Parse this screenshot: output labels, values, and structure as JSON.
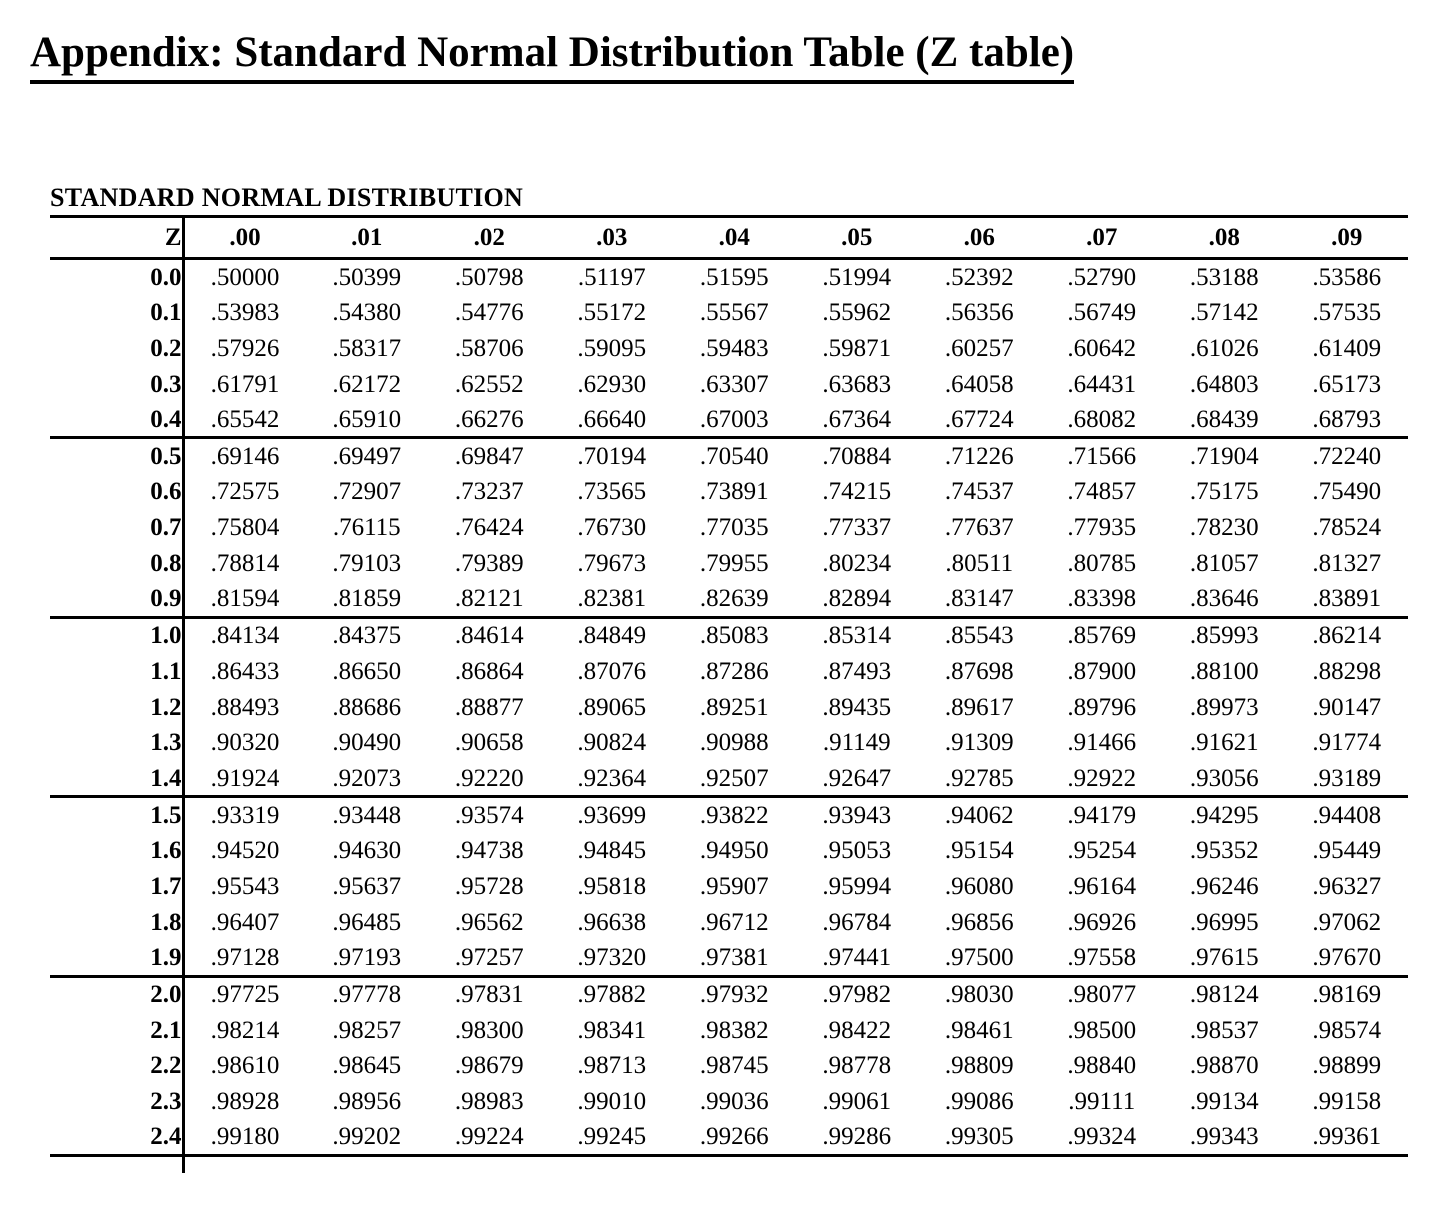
{
  "page_title": "Appendix: Standard Normal Distribution Table (Z table)",
  "colors": {
    "text": "#000000",
    "background": "#ffffff",
    "rule": "#000000"
  },
  "table": {
    "label": "STANDARD NORMAL DISTRIBUTION",
    "corner_header": "Z",
    "column_headers": [
      ".00",
      ".01",
      ".02",
      ".03",
      ".04",
      ".05",
      ".06",
      ".07",
      ".08",
      ".09"
    ],
    "group_size": 5,
    "rows": [
      {
        "z": "0.0",
        "values": [
          ".50000",
          ".50399",
          ".50798",
          ".51197",
          ".51595",
          ".51994",
          ".52392",
          ".52790",
          ".53188",
          ".53586"
        ]
      },
      {
        "z": "0.1",
        "values": [
          ".53983",
          ".54380",
          ".54776",
          ".55172",
          ".55567",
          ".55962",
          ".56356",
          ".56749",
          ".57142",
          ".57535"
        ]
      },
      {
        "z": "0.2",
        "values": [
          ".57926",
          ".58317",
          ".58706",
          ".59095",
          ".59483",
          ".59871",
          ".60257",
          ".60642",
          ".61026",
          ".61409"
        ]
      },
      {
        "z": "0.3",
        "values": [
          ".61791",
          ".62172",
          ".62552",
          ".62930",
          ".63307",
          ".63683",
          ".64058",
          ".64431",
          ".64803",
          ".65173"
        ]
      },
      {
        "z": "0.4",
        "values": [
          ".65542",
          ".65910",
          ".66276",
          ".66640",
          ".67003",
          ".67364",
          ".67724",
          ".68082",
          ".68439",
          ".68793"
        ]
      },
      {
        "z": "0.5",
        "values": [
          ".69146",
          ".69497",
          ".69847",
          ".70194",
          ".70540",
          ".70884",
          ".71226",
          ".71566",
          ".71904",
          ".72240"
        ]
      },
      {
        "z": "0.6",
        "values": [
          ".72575",
          ".72907",
          ".73237",
          ".73565",
          ".73891",
          ".74215",
          ".74537",
          ".74857",
          ".75175",
          ".75490"
        ]
      },
      {
        "z": "0.7",
        "values": [
          ".75804",
          ".76115",
          ".76424",
          ".76730",
          ".77035",
          ".77337",
          ".77637",
          ".77935",
          ".78230",
          ".78524"
        ]
      },
      {
        "z": "0.8",
        "values": [
          ".78814",
          ".79103",
          ".79389",
          ".79673",
          ".79955",
          ".80234",
          ".80511",
          ".80785",
          ".81057",
          ".81327"
        ]
      },
      {
        "z": "0.9",
        "values": [
          ".81594",
          ".81859",
          ".82121",
          ".82381",
          ".82639",
          ".82894",
          ".83147",
          ".83398",
          ".83646",
          ".83891"
        ]
      },
      {
        "z": "1.0",
        "values": [
          ".84134",
          ".84375",
          ".84614",
          ".84849",
          ".85083",
          ".85314",
          ".85543",
          ".85769",
          ".85993",
          ".86214"
        ]
      },
      {
        "z": "1.1",
        "values": [
          ".86433",
          ".86650",
          ".86864",
          ".87076",
          ".87286",
          ".87493",
          ".87698",
          ".87900",
          ".88100",
          ".88298"
        ]
      },
      {
        "z": "1.2",
        "values": [
          ".88493",
          ".88686",
          ".88877",
          ".89065",
          ".89251",
          ".89435",
          ".89617",
          ".89796",
          ".89973",
          ".90147"
        ]
      },
      {
        "z": "1.3",
        "values": [
          ".90320",
          ".90490",
          ".90658",
          ".90824",
          ".90988",
          ".91149",
          ".91309",
          ".91466",
          ".91621",
          ".91774"
        ]
      },
      {
        "z": "1.4",
        "values": [
          ".91924",
          ".92073",
          ".92220",
          ".92364",
          ".92507",
          ".92647",
          ".92785",
          ".92922",
          ".93056",
          ".93189"
        ]
      },
      {
        "z": "1.5",
        "values": [
          ".93319",
          ".93448",
          ".93574",
          ".93699",
          ".93822",
          ".93943",
          ".94062",
          ".94179",
          ".94295",
          ".94408"
        ]
      },
      {
        "z": "1.6",
        "values": [
          ".94520",
          ".94630",
          ".94738",
          ".94845",
          ".94950",
          ".95053",
          ".95154",
          ".95254",
          ".95352",
          ".95449"
        ]
      },
      {
        "z": "1.7",
        "values": [
          ".95543",
          ".95637",
          ".95728",
          ".95818",
          ".95907",
          ".95994",
          ".96080",
          ".96164",
          ".96246",
          ".96327"
        ]
      },
      {
        "z": "1.8",
        "values": [
          ".96407",
          ".96485",
          ".96562",
          ".96638",
          ".96712",
          ".96784",
          ".96856",
          ".96926",
          ".96995",
          ".97062"
        ]
      },
      {
        "z": "1.9",
        "values": [
          ".97128",
          ".97193",
          ".97257",
          ".97320",
          ".97381",
          ".97441",
          ".97500",
          ".97558",
          ".97615",
          ".97670"
        ]
      },
      {
        "z": "2.0",
        "values": [
          ".97725",
          ".97778",
          ".97831",
          ".97882",
          ".97932",
          ".97982",
          ".98030",
          ".98077",
          ".98124",
          ".98169"
        ]
      },
      {
        "z": "2.1",
        "values": [
          ".98214",
          ".98257",
          ".98300",
          ".98341",
          ".98382",
          ".98422",
          ".98461",
          ".98500",
          ".98537",
          ".98574"
        ]
      },
      {
        "z": "2.2",
        "values": [
          ".98610",
          ".98645",
          ".98679",
          ".98713",
          ".98745",
          ".98778",
          ".98809",
          ".98840",
          ".98870",
          ".98899"
        ]
      },
      {
        "z": "2.3",
        "values": [
          ".98928",
          ".98956",
          ".98983",
          ".99010",
          ".99036",
          ".99061",
          ".99086",
          ".99111",
          ".99134",
          ".99158"
        ]
      },
      {
        "z": "2.4",
        "values": [
          ".99180",
          ".99202",
          ".99224",
          ".99245",
          ".99266",
          ".99286",
          ".99305",
          ".99324",
          ".99343",
          ".99361"
        ]
      }
    ]
  }
}
